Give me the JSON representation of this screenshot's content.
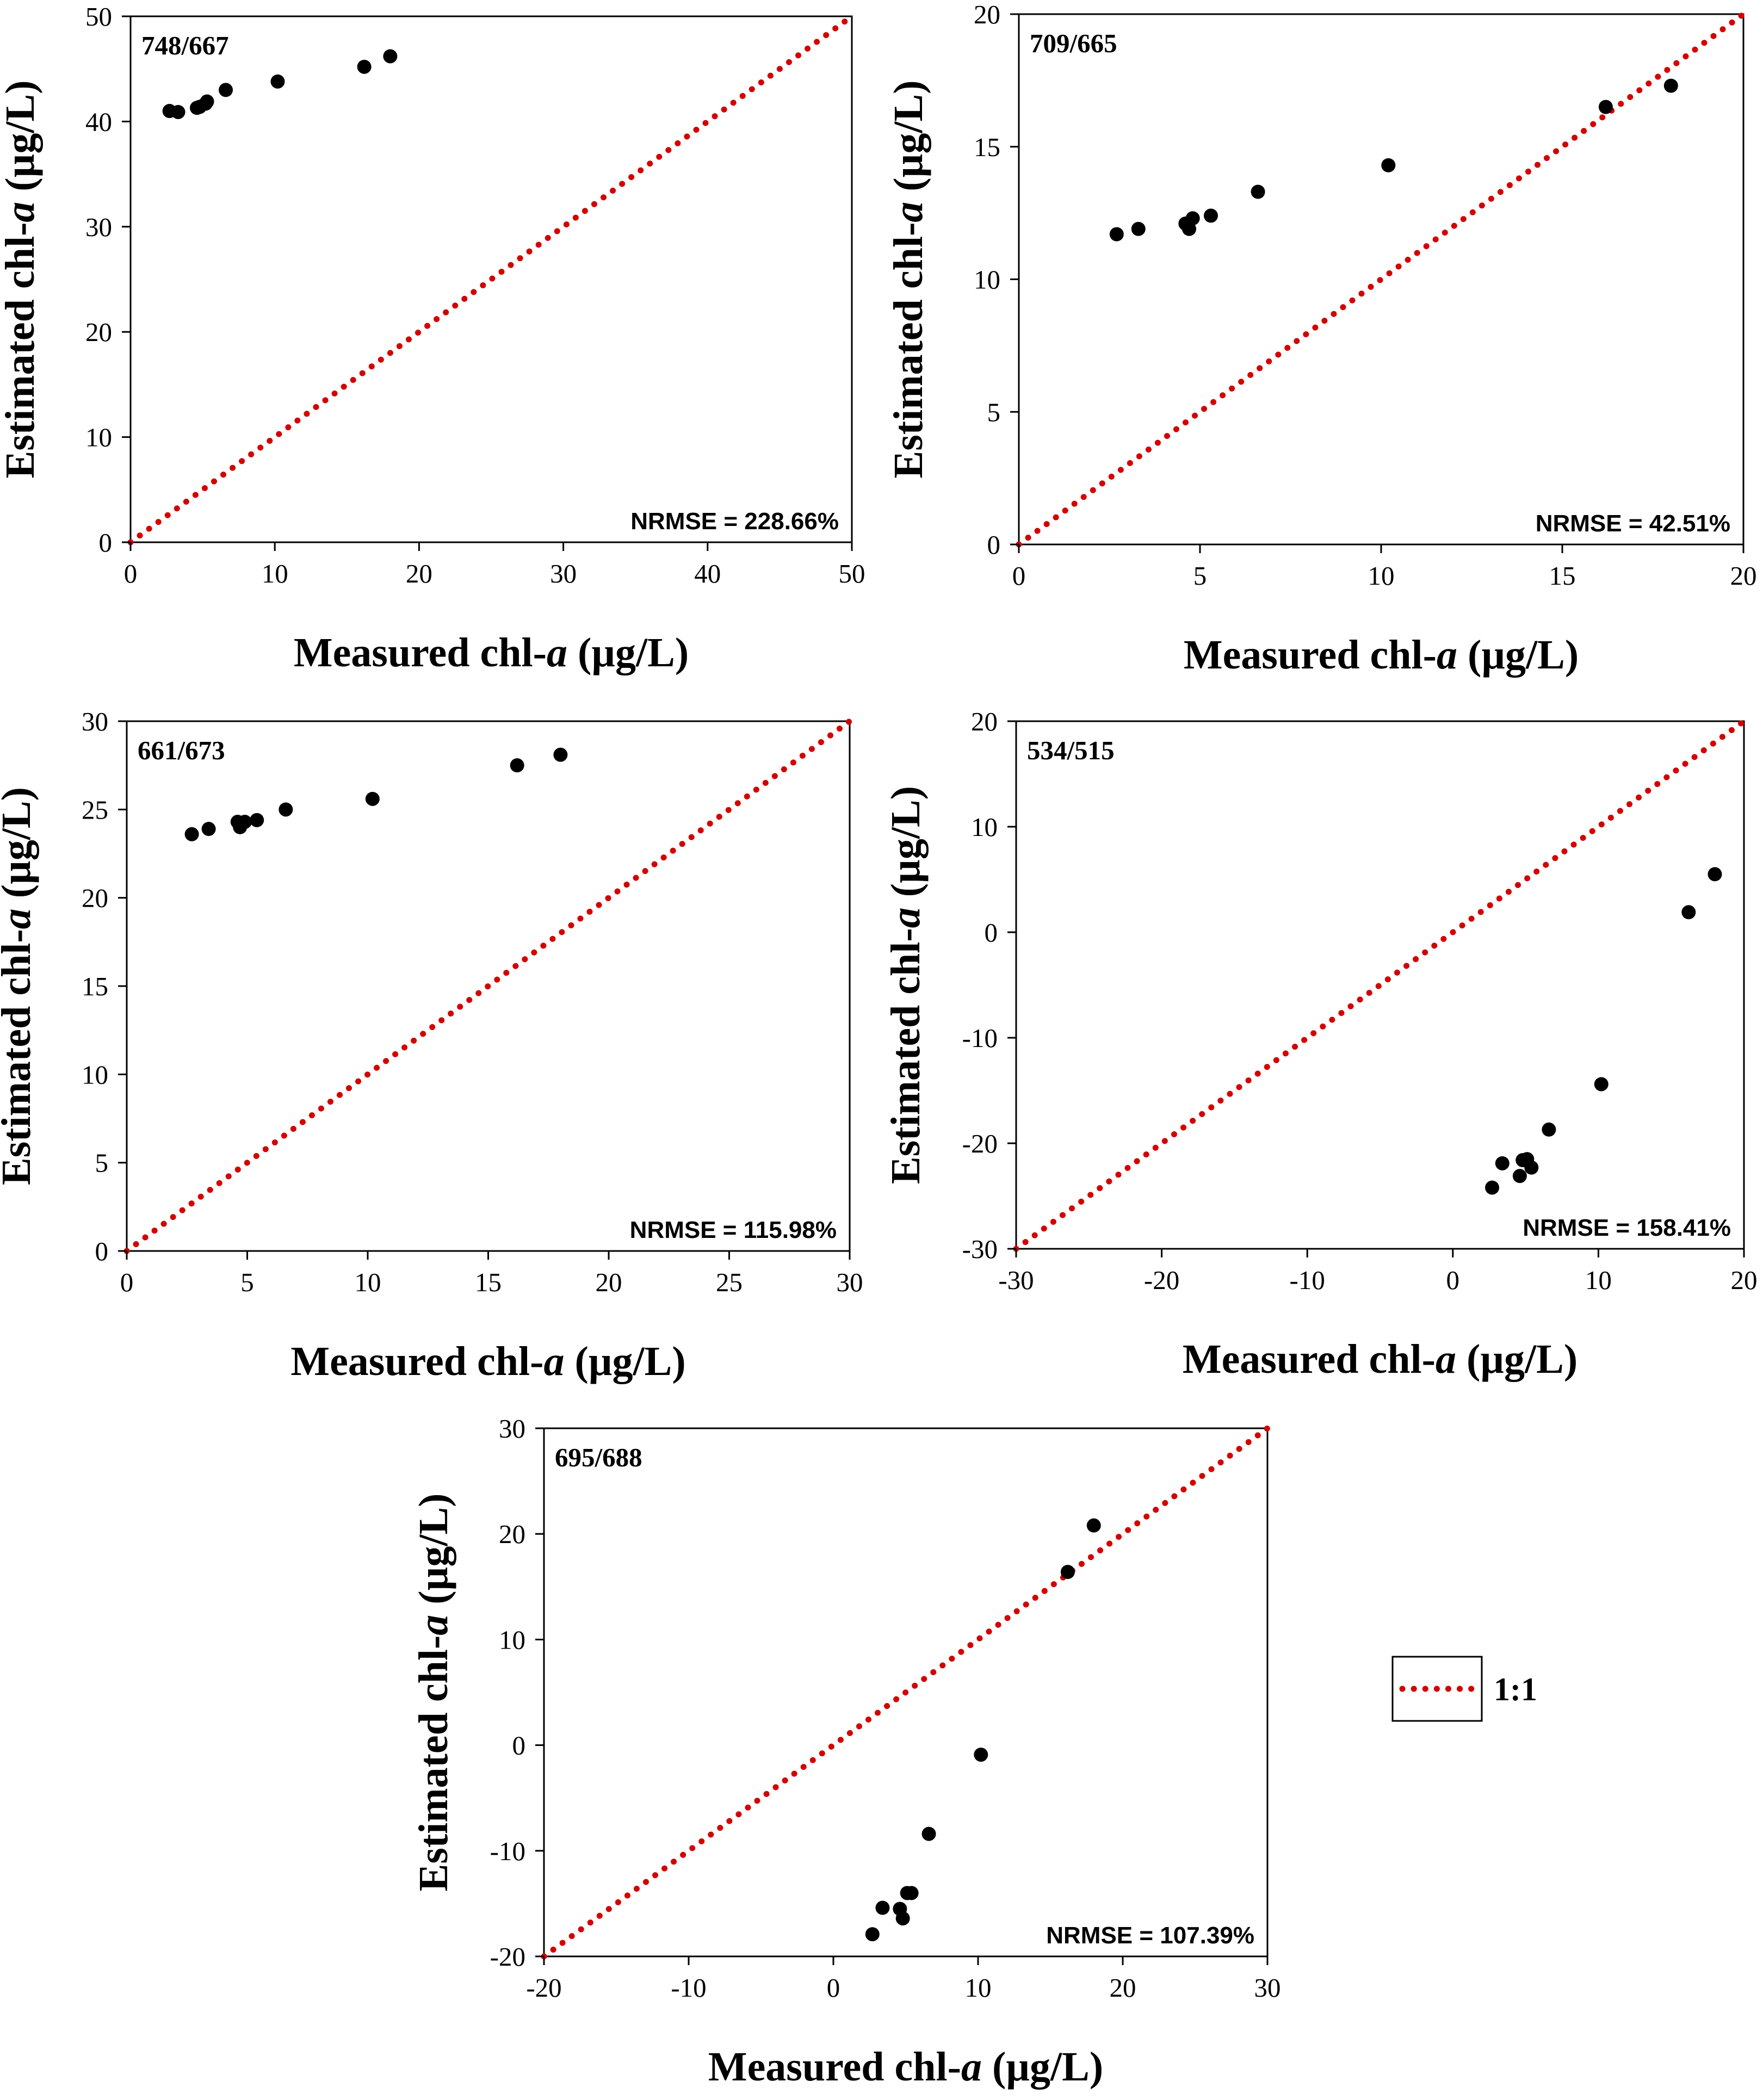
{
  "chart_data": [
    {
      "type": "scatter",
      "label": "748/667",
      "stat": "NRMSE = 228.66%",
      "xlabel": "Measured chl-a (µg/L)",
      "ylabel": "Estimated chl-a (µg/L)",
      "xlim": [
        0,
        50
      ],
      "ylim": [
        0,
        50
      ],
      "xticks": [
        0,
        10,
        20,
        30,
        40,
        50
      ],
      "yticks": [
        0,
        10,
        20,
        30,
        40,
        50
      ],
      "grid": false,
      "points": [
        [
          2.7,
          41.0
        ],
        [
          3.3,
          40.9
        ],
        [
          4.6,
          41.3
        ],
        [
          4.8,
          41.4
        ],
        [
          5.2,
          41.7
        ],
        [
          5.3,
          41.9
        ],
        [
          6.6,
          43.0
        ],
        [
          10.2,
          43.8
        ],
        [
          16.2,
          45.2
        ],
        [
          18.0,
          46.2
        ]
      ]
    },
    {
      "type": "scatter",
      "label": "709/665",
      "stat": "NRMSE = 42.51%",
      "xlabel": "Measured chl-a (µg/L)",
      "ylabel": "Estimated chl-a (µg/L)",
      "xlim": [
        0,
        20
      ],
      "ylim": [
        0,
        20
      ],
      "xticks": [
        0,
        5,
        10,
        15,
        20
      ],
      "yticks": [
        0,
        5,
        10,
        15,
        20
      ],
      "grid": false,
      "points": [
        [
          2.7,
          11.7
        ],
        [
          3.3,
          11.9
        ],
        [
          4.6,
          12.1
        ],
        [
          4.7,
          11.9
        ],
        [
          4.8,
          12.3
        ],
        [
          5.3,
          12.4
        ],
        [
          6.6,
          13.3
        ],
        [
          10.2,
          14.3
        ],
        [
          16.2,
          16.5
        ],
        [
          18.0,
          17.3
        ]
      ]
    },
    {
      "type": "scatter",
      "label": "661/673",
      "stat": "NRMSE = 115.98%",
      "xlabel": "Measured chl-a (µg/L)",
      "ylabel": "Estimated chl-a (µg/L)",
      "xlim": [
        0,
        30
      ],
      "ylim": [
        0,
        30
      ],
      "xticks": [
        0,
        5,
        10,
        15,
        20,
        25,
        30
      ],
      "yticks": [
        0,
        5,
        10,
        15,
        20,
        25,
        30
      ],
      "grid": false,
      "points": [
        [
          2.7,
          23.6
        ],
        [
          3.4,
          23.9
        ],
        [
          4.6,
          24.3
        ],
        [
          4.7,
          24.0
        ],
        [
          4.9,
          24.3
        ],
        [
          5.4,
          24.4
        ],
        [
          6.6,
          25.0
        ],
        [
          10.2,
          25.6
        ],
        [
          16.2,
          27.5
        ],
        [
          18.0,
          28.1
        ]
      ]
    },
    {
      "type": "scatter",
      "label": "534/515",
      "stat": "NRMSE = 158.41%",
      "xlabel": "Measured chl-a (µg/L)",
      "ylabel": "Estimated chl-a (µg/L)",
      "xlim": [
        -30,
        20
      ],
      "ylim": [
        -30,
        20
      ],
      "xticks": [
        -30,
        -20,
        -10,
        0,
        10,
        20
      ],
      "yticks": [
        -30,
        -20,
        -10,
        0,
        10,
        20
      ],
      "grid": false,
      "points": [
        [
          2.7,
          -24.2
        ],
        [
          3.4,
          -21.9
        ],
        [
          4.6,
          -23.1
        ],
        [
          4.8,
          -21.6
        ],
        [
          5.1,
          -21.5
        ],
        [
          5.4,
          -22.3
        ],
        [
          6.6,
          -18.7
        ],
        [
          10.2,
          -14.4
        ],
        [
          16.2,
          1.9
        ],
        [
          18.0,
          5.5
        ]
      ]
    },
    {
      "type": "scatter",
      "label": "695/688",
      "stat": "NRMSE = 107.39%",
      "xlabel": "Measured chl-a (µg/L)",
      "ylabel": "Estimated chl-a (µg/L)",
      "xlim": [
        -20,
        30
      ],
      "ylim": [
        -20,
        30
      ],
      "xticks": [
        -20,
        -10,
        0,
        10,
        20,
        30
      ],
      "yticks": [
        -20,
        -10,
        0,
        10,
        20,
        30
      ],
      "grid": false,
      "points": [
        [
          2.7,
          -17.9
        ],
        [
          3.4,
          -15.4
        ],
        [
          4.6,
          -15.5
        ],
        [
          4.8,
          -16.4
        ],
        [
          5.1,
          -14.0
        ],
        [
          5.4,
          -14.0
        ],
        [
          6.6,
          -8.4
        ],
        [
          10.2,
          -0.9
        ],
        [
          16.2,
          16.4
        ],
        [
          18.0,
          20.8
        ]
      ]
    }
  ],
  "legend": {
    "label": "1:1",
    "color": "#d40000",
    "style": "dotted",
    "position": "right of bottom panel"
  },
  "colors": {
    "one_to_one_line": "#d40000",
    "points": "#000000"
  }
}
